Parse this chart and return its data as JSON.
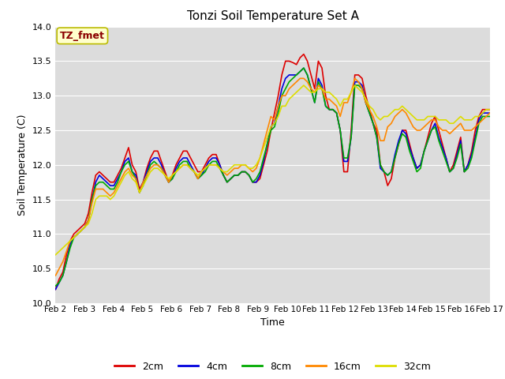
{
  "title": "Tonzi Soil Temperature Set A",
  "xlabel": "Time",
  "ylabel": "Soil Temperature (C)",
  "annotation": "TZ_fmet",
  "annotation_color": "#8B0000",
  "ylim": [
    10.0,
    14.0
  ],
  "yticks": [
    10.0,
    10.5,
    11.0,
    11.5,
    12.0,
    12.5,
    13.0,
    13.5,
    14.0
  ],
  "xtick_labels": [
    "Feb 2",
    "Feb 3",
    "Feb 4",
    "Feb 5",
    "Feb 6",
    "Feb 7",
    "Feb 8",
    "Feb 9",
    "Feb 10",
    "Feb 11",
    "Feb 12",
    "Feb 13",
    "Feb 14",
    "Feb 15",
    "Feb 16",
    "Feb 17"
  ],
  "bg_color": "#DCDCDC",
  "grid_color": "#FFFFFF",
  "series_colors": {
    "2cm": "#DD0000",
    "4cm": "#0000DD",
    "8cm": "#00AA00",
    "16cm": "#FF8800",
    "32cm": "#DDDD00"
  },
  "legend_labels": [
    "2cm",
    "4cm",
    "8cm",
    "16cm",
    "32cm"
  ],
  "legend_colors": [
    "#DD0000",
    "#0000DD",
    "#00AA00",
    "#FF8800",
    "#DDDD00"
  ],
  "num_days": 15,
  "points_per_day": 8,
  "y_2cm": [
    10.2,
    10.35,
    10.45,
    10.7,
    10.9,
    11.0,
    11.05,
    11.1,
    11.15,
    11.3,
    11.6,
    11.85,
    11.9,
    11.85,
    11.8,
    11.75,
    11.75,
    11.85,
    11.95,
    12.1,
    12.25,
    12.0,
    11.9,
    11.65,
    11.75,
    11.95,
    12.1,
    12.2,
    12.2,
    12.05,
    11.9,
    11.75,
    11.85,
    12.0,
    12.1,
    12.2,
    12.2,
    12.1,
    12.0,
    11.9,
    11.9,
    12.0,
    12.1,
    12.15,
    12.15,
    12.0,
    11.85,
    11.75,
    11.8,
    11.85,
    11.85,
    11.9,
    11.9,
    11.85,
    11.75,
    11.75,
    11.8,
    12.0,
    12.2,
    12.5,
    12.75,
    13.0,
    13.3,
    13.5,
    13.5,
    13.48,
    13.45,
    13.55,
    13.6,
    13.5,
    13.3,
    13.1,
    13.5,
    13.4,
    13.0,
    12.8,
    12.8,
    12.75,
    12.5,
    11.9,
    11.9,
    12.5,
    13.3,
    13.3,
    13.25,
    13.0,
    12.8,
    12.6,
    12.5,
    12.0,
    11.9,
    11.7,
    11.8,
    12.1,
    12.3,
    12.5,
    12.5,
    12.3,
    12.1,
    11.95,
    12.0,
    12.2,
    12.4,
    12.6,
    12.7,
    12.5,
    12.3,
    12.1,
    11.9,
    12.0,
    12.2,
    12.4,
    11.9,
    12.0,
    12.2,
    12.5,
    12.7,
    12.8,
    12.8,
    12.8
  ],
  "y_4cm": [
    10.2,
    10.3,
    10.4,
    10.6,
    10.85,
    10.95,
    11.0,
    11.05,
    11.1,
    11.2,
    11.5,
    11.75,
    11.85,
    11.8,
    11.75,
    11.7,
    11.7,
    11.8,
    11.9,
    12.05,
    12.1,
    11.9,
    11.85,
    11.6,
    11.75,
    11.9,
    12.05,
    12.1,
    12.1,
    12.0,
    11.85,
    11.75,
    11.8,
    11.95,
    12.05,
    12.1,
    12.1,
    12.0,
    11.9,
    11.8,
    11.85,
    11.95,
    12.05,
    12.1,
    12.1,
    12.0,
    11.85,
    11.75,
    11.8,
    11.85,
    11.85,
    11.9,
    11.9,
    11.85,
    11.75,
    11.75,
    11.85,
    12.05,
    12.3,
    12.55,
    12.6,
    12.85,
    13.1,
    13.25,
    13.3,
    13.3,
    13.3,
    13.35,
    13.4,
    13.3,
    13.1,
    12.9,
    13.25,
    13.15,
    12.85,
    12.8,
    12.8,
    12.75,
    12.5,
    12.05,
    12.05,
    12.4,
    13.2,
    13.2,
    13.15,
    12.9,
    12.75,
    12.6,
    12.4,
    11.95,
    11.9,
    11.85,
    11.9,
    12.15,
    12.35,
    12.5,
    12.45,
    12.25,
    12.1,
    11.95,
    12.0,
    12.2,
    12.35,
    12.5,
    12.6,
    12.4,
    12.25,
    12.1,
    11.9,
    11.95,
    12.15,
    12.35,
    11.9,
    12.0,
    12.15,
    12.4,
    12.65,
    12.75,
    12.75,
    12.75
  ],
  "y_8cm": [
    10.25,
    10.3,
    10.4,
    10.6,
    10.8,
    10.95,
    11.0,
    11.05,
    11.1,
    11.2,
    11.5,
    11.7,
    11.75,
    11.75,
    11.7,
    11.65,
    11.65,
    11.75,
    11.9,
    12.0,
    12.05,
    11.9,
    11.8,
    11.6,
    11.7,
    11.85,
    12.0,
    12.05,
    12.0,
    11.95,
    11.85,
    11.75,
    11.8,
    11.9,
    12.0,
    12.05,
    12.05,
    11.95,
    11.9,
    11.8,
    11.85,
    11.9,
    12.0,
    12.05,
    12.05,
    11.95,
    11.85,
    11.75,
    11.8,
    11.85,
    11.85,
    11.9,
    11.9,
    11.85,
    11.75,
    11.8,
    11.9,
    12.1,
    12.3,
    12.5,
    12.55,
    12.75,
    13.0,
    13.1,
    13.2,
    13.25,
    13.3,
    13.35,
    13.4,
    13.3,
    13.1,
    12.9,
    13.2,
    13.1,
    12.85,
    12.8,
    12.8,
    12.75,
    12.5,
    12.1,
    12.1,
    12.4,
    13.15,
    13.15,
    13.1,
    12.9,
    12.75,
    12.6,
    12.4,
    12.0,
    11.9,
    11.85,
    11.9,
    12.1,
    12.3,
    12.45,
    12.4,
    12.2,
    12.05,
    11.9,
    11.95,
    12.2,
    12.35,
    12.5,
    12.55,
    12.35,
    12.2,
    12.05,
    11.9,
    11.95,
    12.1,
    12.3,
    11.9,
    11.95,
    12.1,
    12.35,
    12.6,
    12.7,
    12.7,
    12.7
  ],
  "y_16cm": [
    10.4,
    10.5,
    10.6,
    10.75,
    10.9,
    10.95,
    11.0,
    11.05,
    11.1,
    11.2,
    11.45,
    11.65,
    11.65,
    11.65,
    11.6,
    11.55,
    11.6,
    11.7,
    11.8,
    11.9,
    11.95,
    11.85,
    11.8,
    11.6,
    11.75,
    11.85,
    11.95,
    12.0,
    12.0,
    11.95,
    11.85,
    11.75,
    11.85,
    11.9,
    11.95,
    12.0,
    12.0,
    11.95,
    11.9,
    11.8,
    11.9,
    11.95,
    12.0,
    12.0,
    12.0,
    11.95,
    11.9,
    11.85,
    11.9,
    11.95,
    11.95,
    12.0,
    12.0,
    11.95,
    11.9,
    11.95,
    12.1,
    12.3,
    12.5,
    12.7,
    12.65,
    12.85,
    13.0,
    13.0,
    13.1,
    13.15,
    13.2,
    13.25,
    13.25,
    13.2,
    13.1,
    13.05,
    13.15,
    13.1,
    12.95,
    12.95,
    12.9,
    12.85,
    12.7,
    12.9,
    12.9,
    13.05,
    13.25,
    13.2,
    13.1,
    12.9,
    12.8,
    12.7,
    12.55,
    12.35,
    12.35,
    12.55,
    12.6,
    12.7,
    12.75,
    12.8,
    12.75,
    12.65,
    12.55,
    12.5,
    12.5,
    12.55,
    12.6,
    12.65,
    12.65,
    12.55,
    12.5,
    12.5,
    12.45,
    12.5,
    12.55,
    12.6,
    12.5,
    12.5,
    12.5,
    12.55,
    12.6,
    12.65,
    12.7,
    12.75
  ],
  "y_32cm": [
    10.7,
    10.75,
    10.8,
    10.85,
    10.9,
    10.95,
    11.0,
    11.05,
    11.1,
    11.15,
    11.3,
    11.5,
    11.55,
    11.55,
    11.55,
    11.5,
    11.55,
    11.65,
    11.75,
    11.85,
    11.9,
    11.8,
    11.75,
    11.6,
    11.7,
    11.8,
    11.9,
    11.95,
    11.95,
    11.9,
    11.85,
    11.8,
    11.85,
    11.9,
    11.95,
    12.0,
    12.0,
    11.95,
    11.9,
    11.85,
    11.9,
    11.95,
    12.0,
    12.0,
    12.0,
    11.95,
    11.9,
    11.9,
    11.95,
    12.0,
    12.0,
    12.0,
    12.0,
    11.95,
    11.95,
    12.0,
    12.1,
    12.25,
    12.4,
    12.55,
    12.6,
    12.7,
    12.85,
    12.85,
    12.95,
    13.0,
    13.05,
    13.1,
    13.15,
    13.1,
    13.05,
    13.05,
    13.1,
    13.1,
    13.05,
    13.05,
    13.0,
    12.95,
    12.85,
    12.95,
    12.95,
    13.05,
    13.15,
    13.1,
    13.05,
    12.95,
    12.85,
    12.8,
    12.7,
    12.65,
    12.7,
    12.7,
    12.75,
    12.8,
    12.8,
    12.85,
    12.8,
    12.75,
    12.7,
    12.65,
    12.65,
    12.65,
    12.7,
    12.7,
    12.7,
    12.65,
    12.65,
    12.65,
    12.6,
    12.6,
    12.65,
    12.7,
    12.65,
    12.65,
    12.65,
    12.7,
    12.7,
    12.75,
    12.8,
    12.8
  ]
}
